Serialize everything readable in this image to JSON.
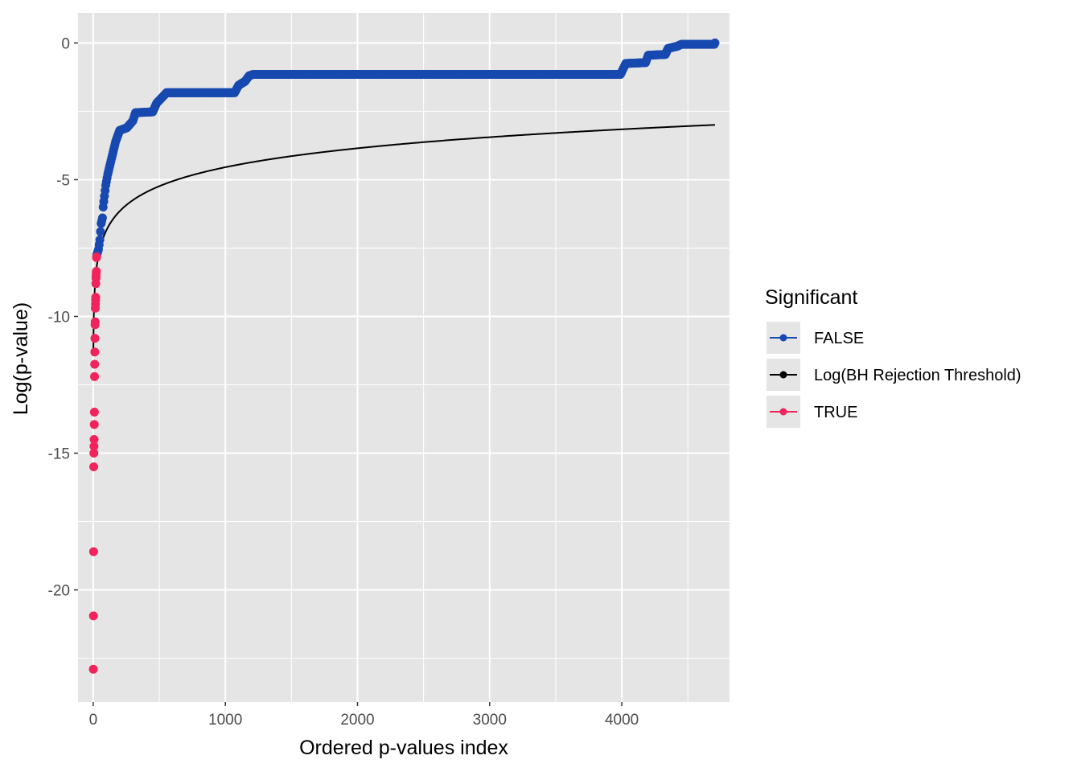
{
  "chart_data": {
    "type": "scatter",
    "xlabel": "Ordered p-values index",
    "ylabel": "Log(p-value)",
    "xlim": [
      -115,
      4815
    ],
    "ylim": [
      -24.1,
      1.1
    ],
    "x_ticks": [
      0,
      1000,
      2000,
      3000,
      4000
    ],
    "x_tick_labels": [
      "0",
      "1000",
      "2000",
      "3000",
      "4000"
    ],
    "y_ticks": [
      0,
      -5,
      -10,
      -15,
      -20
    ],
    "y_tick_labels": [
      "0",
      "-5",
      "-10",
      "-15",
      "-20"
    ],
    "grid": true,
    "legend": {
      "title": "Significant",
      "position": "right",
      "entries": [
        "FALSE",
        "Log(BH Rejection Threshold)",
        "TRUE"
      ]
    },
    "colors": {
      "FALSE": "#1749b0",
      "threshold": "#000000",
      "TRUE": "#f0245a",
      "panel": "#e5e5e5",
      "grid": "#ffffff"
    },
    "series": [
      {
        "name": "TRUE",
        "kind": "points",
        "points": [
          [
            1,
            -22.9
          ],
          [
            2,
            -20.95
          ],
          [
            3,
            -18.6
          ],
          [
            4,
            -15.5
          ],
          [
            5,
            -15.0
          ],
          [
            6,
            -14.75
          ],
          [
            7,
            -14.5
          ],
          [
            8,
            -13.95
          ],
          [
            9,
            -13.5
          ],
          [
            10,
            -12.2
          ],
          [
            11,
            -11.75
          ],
          [
            12,
            -11.3
          ],
          [
            13,
            -10.8
          ],
          [
            14,
            -10.3
          ],
          [
            15,
            -10.2
          ],
          [
            16,
            -9.7
          ],
          [
            17,
            -9.55
          ],
          [
            18,
            -9.4
          ],
          [
            19,
            -9.3
          ],
          [
            20,
            -8.8
          ],
          [
            21,
            -8.6
          ],
          [
            22,
            -8.5
          ],
          [
            23,
            -8.4
          ],
          [
            24,
            -8.35
          ],
          [
            25,
            -7.85
          ],
          [
            26,
            -7.82
          ]
        ]
      },
      {
        "name": "FALSE",
        "kind": "step_points",
        "points": [
          [
            27,
            -7.75
          ],
          [
            40,
            -7.55
          ],
          [
            50,
            -7.2
          ],
          [
            55,
            -6.9
          ],
          [
            60,
            -6.6
          ],
          [
            70,
            -6.4
          ],
          [
            75,
            -6.0
          ],
          [
            85,
            -5.6
          ],
          [
            95,
            -5.2
          ],
          [
            110,
            -4.8
          ],
          [
            125,
            -4.5
          ],
          [
            140,
            -4.2
          ],
          [
            155,
            -3.9
          ],
          [
            170,
            -3.6
          ],
          [
            185,
            -3.4
          ],
          [
            200,
            -3.2
          ],
          [
            255,
            -3.1
          ],
          [
            300,
            -2.85
          ],
          [
            320,
            -2.55
          ],
          [
            450,
            -2.52
          ],
          [
            480,
            -2.2
          ],
          [
            520,
            -2.0
          ],
          [
            555,
            -1.82
          ],
          [
            1070,
            -1.82
          ],
          [
            1100,
            -1.55
          ],
          [
            1150,
            -1.4
          ],
          [
            1180,
            -1.2
          ],
          [
            1210,
            -1.15
          ],
          [
            3990,
            -1.15
          ],
          [
            4000,
            -1.05
          ],
          [
            4030,
            -0.75
          ],
          [
            4180,
            -0.72
          ],
          [
            4200,
            -0.45
          ],
          [
            4330,
            -0.42
          ],
          [
            4350,
            -0.2
          ],
          [
            4420,
            -0.12
          ],
          [
            4450,
            -0.05
          ],
          [
            4700,
            -0.05
          ],
          [
            4705,
            0.0
          ]
        ]
      },
      {
        "name": "Log(BH Rejection Threshold)",
        "kind": "line",
        "n": 4705,
        "alpha": 0.05
      }
    ]
  }
}
